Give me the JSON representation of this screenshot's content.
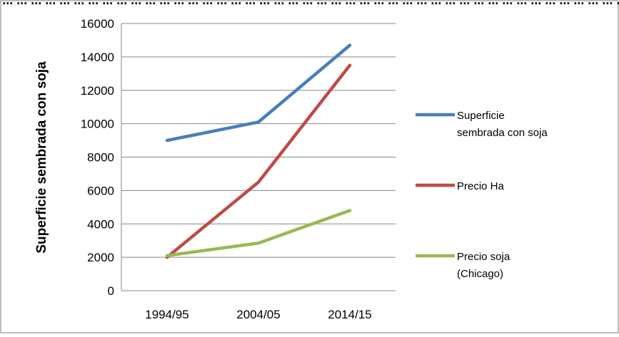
{
  "header_fragment": "...y... (...) ... ... ... ... ... ... ... ... ... ... ... ... ... ... ... ... ... ... ... ... ... ... ... ... ... ... ... ... ... ... ... ... ... ... ... ... ... ... ... ... ... ... ... ... ... ... ... ... ... ... ... ... ... ... ... ... ... ... ... ... ... ... ... ... ...",
  "chart_data": {
    "type": "line",
    "title": "",
    "xlabel": "",
    "ylabel": "Superficie sembrada con soja",
    "ylim": [
      0,
      16000
    ],
    "yticks": [
      0,
      2000,
      4000,
      6000,
      8000,
      10000,
      12000,
      14000,
      16000
    ],
    "grid": true,
    "legend_position": "right",
    "categories": [
      "1994/95",
      "2004/05",
      "2014/15"
    ],
    "series": [
      {
        "name": "Superficie sembrada con soja",
        "legend_lines": [
          "Superficie",
          "sembrada con soja"
        ],
        "color": "#4a7ebb",
        "values": [
          9000,
          10100,
          14700
        ]
      },
      {
        "name": "Precio Ha",
        "legend_lines": [
          "Precio Ha"
        ],
        "color": "#be4b48",
        "values": [
          2000,
          6500,
          13500
        ]
      },
      {
        "name": "Precio soja (Chicago)",
        "legend_lines": [
          "Precio soja",
          "(Chicago)"
        ],
        "color": "#98b954",
        "values": [
          2100,
          2850,
          4800
        ]
      }
    ]
  }
}
